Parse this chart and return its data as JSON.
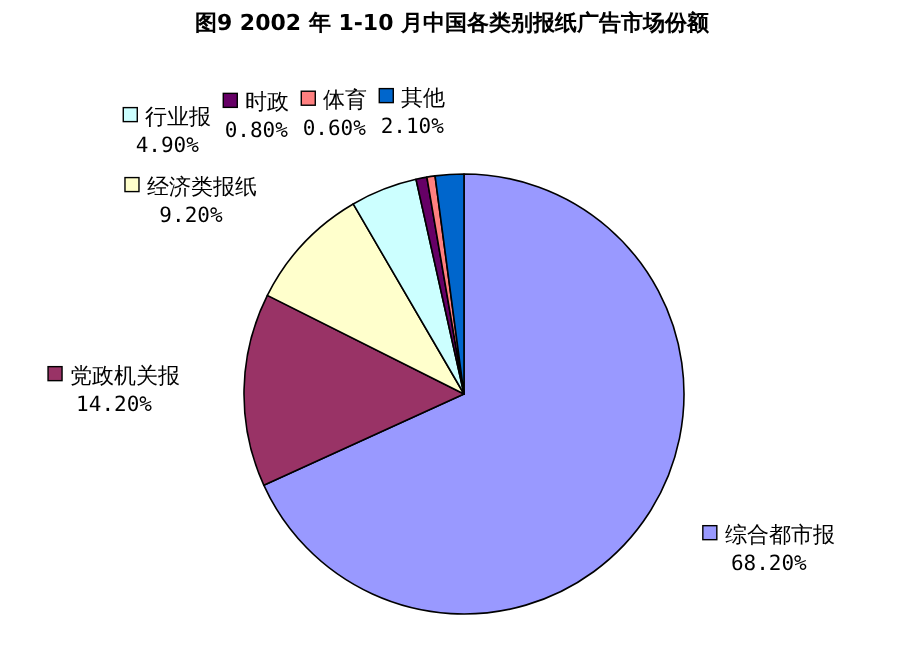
{
  "chart_data": {
    "type": "pie",
    "title": "图9  2002 年 1-10 月中国各类别报纸广告市场份额",
    "categories": [
      "综合都市报",
      "党政机关报",
      "经济类报纸",
      "行业报",
      "时政",
      "体育",
      "其他"
    ],
    "values": [
      68.2,
      14.2,
      9.2,
      4.9,
      0.8,
      0.6,
      2.1
    ],
    "value_labels": [
      "68.20%",
      "14.20%",
      "9.20%",
      "4.90%",
      "0.80%",
      "0.60%",
      "2.10%"
    ],
    "legend": "top left",
    "colors": [
      "#9999ff",
      "#993366",
      "#ffffcc",
      "#ccffff",
      "#660066",
      "#ff8080",
      "#0066cc"
    ]
  }
}
